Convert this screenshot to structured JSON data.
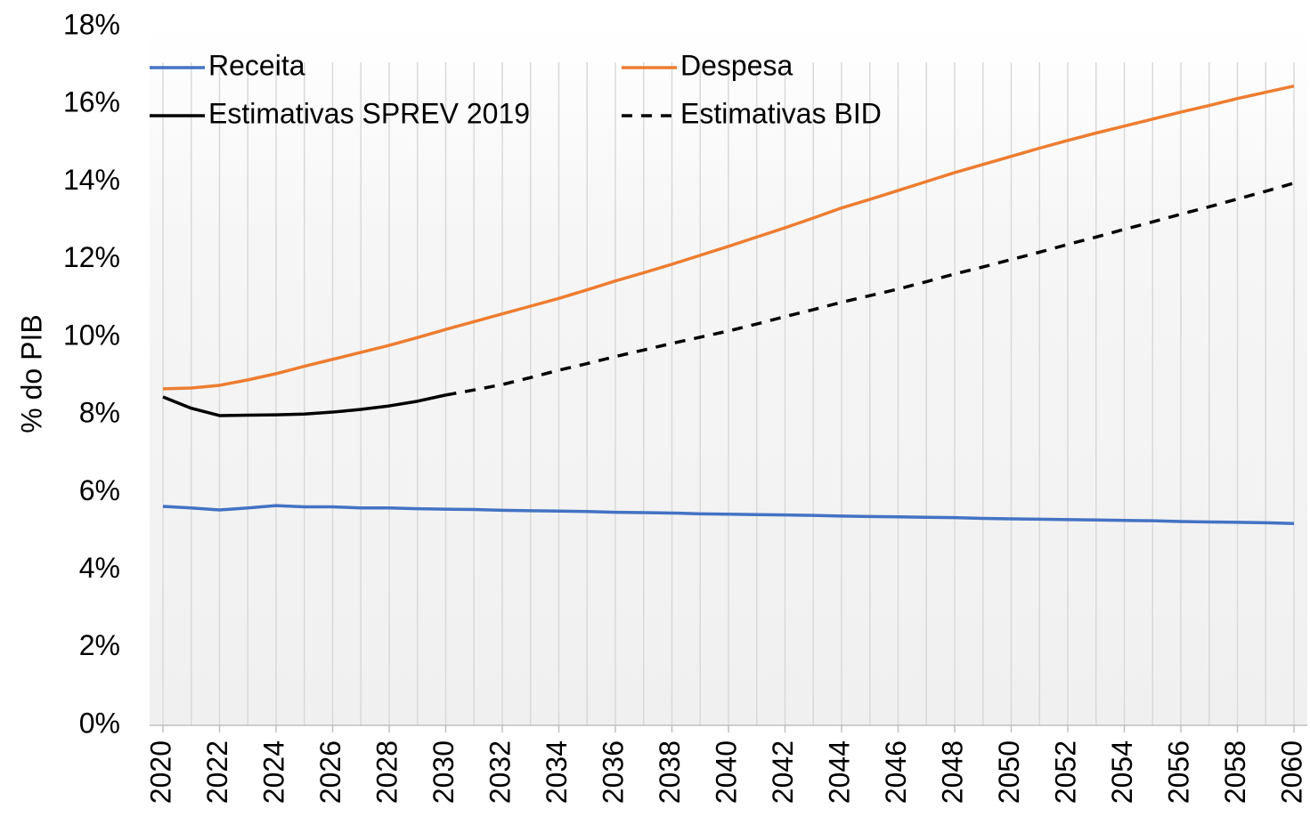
{
  "chart_data": {
    "type": "line",
    "y_label": "% do PIB",
    "x": [
      2020,
      2021,
      2022,
      2023,
      2024,
      2025,
      2026,
      2027,
      2028,
      2029,
      2030,
      2031,
      2032,
      2033,
      2034,
      2035,
      2036,
      2037,
      2038,
      2039,
      2040,
      2041,
      2042,
      2043,
      2044,
      2045,
      2046,
      2047,
      2048,
      2049,
      2050,
      2051,
      2052,
      2053,
      2054,
      2055,
      2056,
      2057,
      2058,
      2059,
      2060
    ],
    "xlim": [
      2020,
      2060
    ],
    "xticks": [
      2020,
      2022,
      2024,
      2026,
      2028,
      2030,
      2032,
      2034,
      2036,
      2038,
      2040,
      2042,
      2044,
      2046,
      2048,
      2050,
      2052,
      2054,
      2056,
      2058,
      2060
    ],
    "ylim": [
      0,
      18
    ],
    "yticks": [
      {
        "value": 0,
        "label": "0%"
      },
      {
        "value": 2,
        "label": "2%"
      },
      {
        "value": 4,
        "label": "4%"
      },
      {
        "value": 6,
        "label": "6%"
      },
      {
        "value": 8,
        "label": "8%"
      },
      {
        "value": 10,
        "label": "10%"
      },
      {
        "value": 12,
        "label": "12%"
      },
      {
        "value": 14,
        "label": "14%"
      },
      {
        "value": 16,
        "label": "16%"
      },
      {
        "value": 18,
        "label": "18%"
      }
    ],
    "grid": "x",
    "legend": "top",
    "series": [
      {
        "name": "Receita",
        "color": "#4472c4",
        "dash": false,
        "values": [
          5.64,
          5.6,
          5.55,
          5.6,
          5.66,
          5.63,
          5.63,
          5.6,
          5.6,
          5.58,
          5.57,
          5.56,
          5.54,
          5.53,
          5.52,
          5.51,
          5.49,
          5.48,
          5.47,
          5.45,
          5.44,
          5.43,
          5.42,
          5.41,
          5.39,
          5.38,
          5.37,
          5.36,
          5.35,
          5.33,
          5.32,
          5.31,
          5.3,
          5.29,
          5.28,
          5.27,
          5.25,
          5.24,
          5.23,
          5.22,
          5.2
        ]
      },
      {
        "name": "Despesa",
        "color": "#ed7d31",
        "dash": false,
        "values": [
          8.67,
          8.69,
          8.76,
          8.9,
          9.06,
          9.25,
          9.43,
          9.61,
          9.79,
          9.99,
          10.2,
          10.4,
          10.6,
          10.8,
          11.0,
          11.22,
          11.45,
          11.66,
          11.88,
          12.11,
          12.34,
          12.58,
          12.82,
          13.07,
          13.33,
          13.55,
          13.78,
          14.01,
          14.24,
          14.45,
          14.66,
          14.87,
          15.07,
          15.26,
          15.44,
          15.62,
          15.8,
          15.97,
          16.15,
          16.31,
          16.47
        ]
      },
      {
        "name": "Estimativas SPREV 2019",
        "color": "#000000",
        "dash": false,
        "values": [
          8.46,
          8.17,
          7.98,
          7.99,
          8.0,
          8.02,
          8.07,
          8.14,
          8.23,
          8.35,
          8.51,
          null,
          null,
          null,
          null,
          null,
          null,
          null,
          null,
          null,
          null,
          null,
          null,
          null,
          null,
          null,
          null,
          null,
          null,
          null,
          null,
          null,
          null,
          null,
          null,
          null,
          null,
          null,
          null,
          null,
          null
        ]
      },
      {
        "name": "Estimativas BID",
        "color": "#000000",
        "dash": true,
        "values": [
          null,
          null,
          null,
          null,
          null,
          null,
          null,
          null,
          null,
          null,
          8.51,
          8.64,
          8.78,
          8.96,
          9.15,
          9.32,
          9.5,
          9.67,
          9.84,
          10.0,
          10.16,
          10.34,
          10.53,
          10.71,
          10.9,
          11.07,
          11.24,
          11.43,
          11.63,
          11.81,
          12.0,
          12.19,
          12.39,
          12.58,
          12.78,
          12.97,
          13.17,
          13.36,
          13.56,
          13.76,
          13.97
        ]
      }
    ]
  }
}
